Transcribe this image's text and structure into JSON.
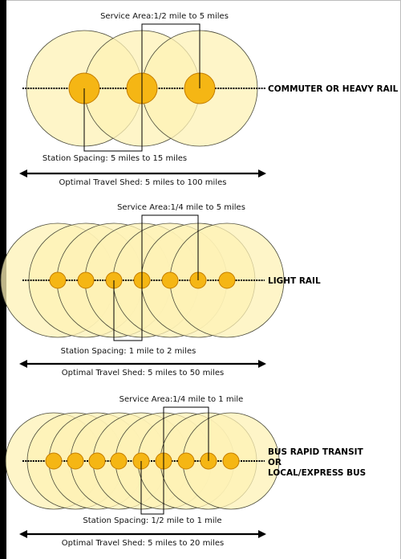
{
  "colors": {
    "service_area_fill": "#fdf2b5",
    "service_area_stroke": "#4a4a3a",
    "station_fill": "#f5b614",
    "station_stroke": "#c47d00",
    "line": "#000000"
  },
  "diagrams": [
    {
      "mode_label": "COMMUTER OR HEAVY RAIL",
      "mode_label_lines": [
        "COMMUTER OR HEAVY RAIL"
      ],
      "service_area_label": "Service Area:1/2 mile to 5 miles",
      "station_spacing_label": "Station Spacing: 5 miles to 15 miles",
      "travel_shed_label": "Optimal Travel Shed: 5 miles to 100 miles",
      "station_count": 3
    },
    {
      "mode_label": "LIGHT RAIL",
      "mode_label_lines": [
        "LIGHT RAIL"
      ],
      "service_area_label": "Service Area:1/4 mile to 5 miles",
      "station_spacing_label": "Station Spacing: 1 mile to 2 miles",
      "travel_shed_label": "Optimal Travel Shed: 5 miles to 50 miles",
      "station_count": 7
    },
    {
      "mode_label": "BUS RAPID TRANSIT OR LOCAL/EXPRESS BUS",
      "mode_label_lines": [
        "BUS RAPID TRANSIT",
        "OR",
        "LOCAL/EXPRESS BUS"
      ],
      "service_area_label": "Service Area:1/4 mile to 1 mile",
      "station_spacing_label": "Station Spacing: 1/2 mile to 1 mile",
      "travel_shed_label": "Optimal Travel Shed: 5 miles to 20 miles",
      "station_count": 9
    }
  ]
}
